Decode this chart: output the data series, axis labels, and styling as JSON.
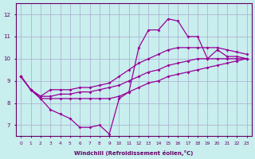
{
  "bg_color": "#c8eeee",
  "line_color": "#990099",
  "grid_color": "#aaaacc",
  "x_hours": [
    0,
    1,
    2,
    3,
    4,
    5,
    6,
    7,
    8,
    9,
    10,
    11,
    12,
    13,
    14,
    15,
    16,
    17,
    18,
    19,
    20,
    21,
    22,
    23
  ],
  "windchill": [
    9.2,
    8.6,
    8.2,
    7.7,
    7.5,
    7.3,
    6.9,
    6.9,
    7.0,
    6.6,
    8.2,
    8.5,
    10.5,
    11.3,
    11.3,
    11.8,
    11.7,
    11.0,
    11.0,
    10.0,
    10.4,
    10.1,
    10.1,
    10.0
  ],
  "temp": [
    9.2,
    8.6,
    8.3,
    8.3,
    8.4,
    8.4,
    8.5,
    8.5,
    8.6,
    8.7,
    8.8,
    9.0,
    9.2,
    9.4,
    9.5,
    9.7,
    9.8,
    9.9,
    10.0,
    10.0,
    10.0,
    10.0,
    10.0,
    10.0
  ],
  "feel_min": [
    9.2,
    8.6,
    8.2,
    8.2,
    8.2,
    8.2,
    8.2,
    8.2,
    8.2,
    8.2,
    8.3,
    8.5,
    8.7,
    8.9,
    9.0,
    9.2,
    9.3,
    9.4,
    9.5,
    9.6,
    9.7,
    9.8,
    9.9,
    10.0
  ],
  "feel_max": [
    9.2,
    8.6,
    8.3,
    8.6,
    8.6,
    8.6,
    8.7,
    8.7,
    8.8,
    8.9,
    9.2,
    9.5,
    9.8,
    10.0,
    10.2,
    10.4,
    10.5,
    10.5,
    10.5,
    10.5,
    10.5,
    10.4,
    10.3,
    10.2
  ],
  "xlabel": "Windchill (Refroidissement éolien,°C)",
  "ylim": [
    6.5,
    12.5
  ],
  "xlim": [
    -0.5,
    23.5
  ],
  "yticks": [
    7,
    8,
    9,
    10,
    11,
    12
  ]
}
